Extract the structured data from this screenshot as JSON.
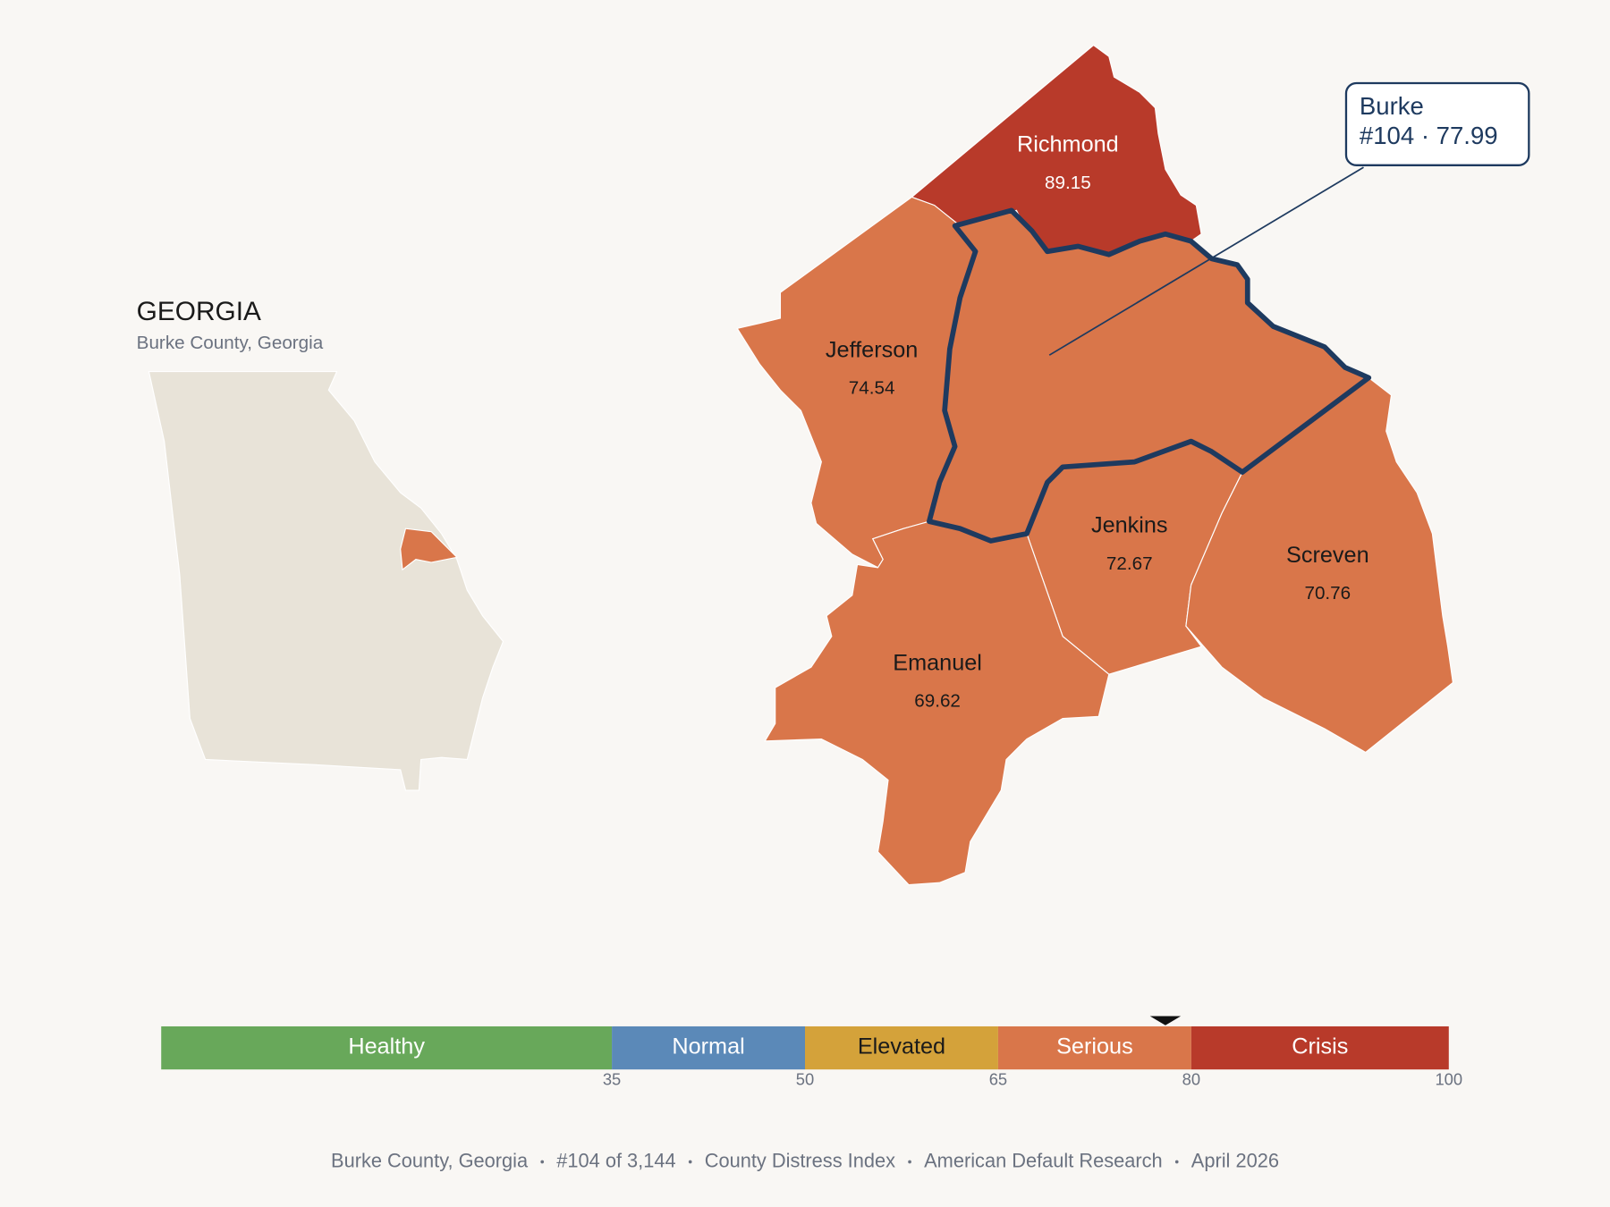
{
  "inset": {
    "title": "GEORGIA",
    "subtitle": "Burke County, Georgia"
  },
  "counties": [
    {
      "name": "Richmond",
      "value": 89.15,
      "color": "#b83a2a"
    },
    {
      "name": "Jefferson",
      "value": 74.54,
      "color": "#d9764a"
    },
    {
      "name": "Jenkins",
      "value": 72.67,
      "color": "#d9764a"
    },
    {
      "name": "Screven",
      "value": 70.76,
      "color": "#d9764a"
    },
    {
      "name": "Emanuel",
      "value": 69.62,
      "color": "#d9764a"
    }
  ],
  "callout": {
    "lines": [
      "Burke",
      "#104 · 77.99"
    ]
  },
  "legend": {
    "range": [
      0,
      100
    ],
    "ticks": [
      35,
      50,
      65,
      80,
      100
    ],
    "marker": 77.99,
    "bands": [
      {
        "label": "Healthy",
        "color": "#68a85a"
      },
      {
        "label": "Normal",
        "color": "#5b89b8"
      },
      {
        "label": "Elevated",
        "color": "#d4a23a"
      },
      {
        "label": "Serious",
        "color": "#d9764a"
      },
      {
        "label": "Crisis",
        "color": "#b83a2a"
      }
    ]
  },
  "footer": [
    "Burke County, Georgia",
    "#104 of 3,144",
    "County Distress Index",
    "American Default Research",
    "April 2026"
  ]
}
